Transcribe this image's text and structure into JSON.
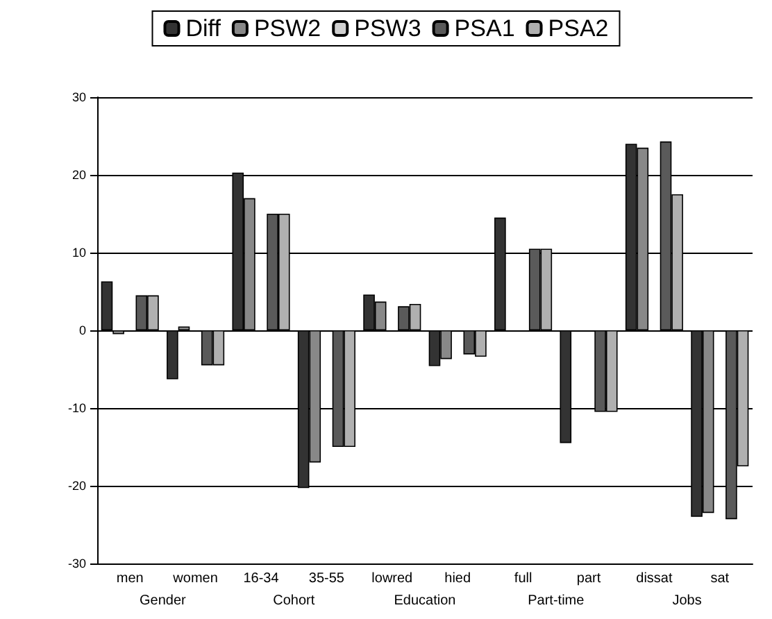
{
  "chart_data": {
    "type": "bar",
    "categories": [
      "men",
      "women",
      "16-34",
      "35-55",
      "lowred",
      "hied",
      "full",
      "part",
      "dissat",
      "sat"
    ],
    "series": [
      {
        "name": "Diff",
        "color": "#333333",
        "values": [
          6.3,
          -6.3,
          20.3,
          -20.3,
          4.6,
          -4.6,
          14.5,
          -14.5,
          24,
          -24
        ]
      },
      {
        "name": "PSW2",
        "color": "#888888",
        "values": [
          -0.5,
          0.5,
          17,
          -17,
          3.7,
          -3.7,
          null,
          null,
          23.5,
          -23.5
        ]
      },
      {
        "name": "PSW3",
        "color": "#d0d0d0",
        "values": [
          null,
          null,
          null,
          null,
          null,
          null,
          null,
          null,
          null,
          null
        ]
      },
      {
        "name": "PSA1",
        "color": "#5a5a5a",
        "values": [
          4.5,
          -4.5,
          15,
          -15,
          3.1,
          -3.1,
          10.5,
          -10.5,
          24.3,
          -24.3
        ]
      },
      {
        "name": "PSA2",
        "color": "#b0b0b0",
        "values": [
          4.5,
          -4.5,
          15,
          -15,
          3.4,
          -3.4,
          10.5,
          -10.5,
          17.5,
          -17.5
        ]
      }
    ],
    "annotations": [
      "Gender",
      "Cohort",
      "Education",
      "Part-time",
      "Jobs"
    ],
    "ylim": [
      -30,
      30
    ],
    "yticks": [
      -30,
      -20,
      -10,
      0,
      10,
      20,
      30
    ],
    "grid": "y",
    "legend": "top"
  }
}
